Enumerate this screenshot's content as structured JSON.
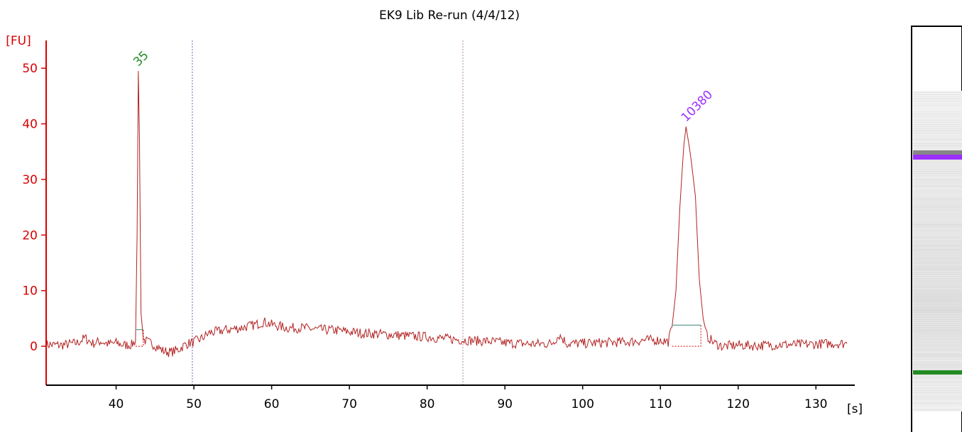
{
  "chart_data": {
    "type": "line",
    "title": "EK9 Lib Re-run (4/4/12)",
    "xlabel": "[s]",
    "ylabel": "[FU]",
    "xlim": [
      31,
      135
    ],
    "ylim": [
      -7,
      55
    ],
    "xticks": [
      40,
      50,
      60,
      70,
      80,
      90,
      100,
      110,
      120,
      130
    ],
    "yticks": [
      0,
      10,
      20,
      30,
      40,
      50
    ],
    "grid": false,
    "series": [
      {
        "color": "#b22222",
        "points": [
          [
            31,
            0.3
          ],
          [
            33,
            0.2
          ],
          [
            35,
            0.6
          ],
          [
            36,
            1.5
          ],
          [
            37,
            0.5
          ],
          [
            38,
            0.9
          ],
          [
            39,
            0.4
          ],
          [
            40,
            0.6
          ],
          [
            41,
            0.2
          ],
          [
            42,
            0.3
          ],
          [
            42.5,
            1.0
          ],
          [
            42.7,
            20
          ],
          [
            42.85,
            49.5
          ],
          [
            43.0,
            38
          ],
          [
            43.2,
            6
          ],
          [
            43.5,
            1.2
          ],
          [
            44,
            0.8
          ],
          [
            45,
            0.2
          ],
          [
            46,
            -0.8
          ],
          [
            47,
            -1.1
          ],
          [
            48,
            -0.6
          ],
          [
            49,
            0.4
          ],
          [
            50,
            0.8
          ],
          [
            51,
            1.4
          ],
          [
            52,
            2.4
          ],
          [
            54,
            2.9
          ],
          [
            56,
            3.3
          ],
          [
            58,
            3.9
          ],
          [
            59,
            4.4
          ],
          [
            60,
            3.9
          ],
          [
            62,
            3.3
          ],
          [
            64,
            3.3
          ],
          [
            66,
            3.0
          ],
          [
            68,
            2.9
          ],
          [
            70,
            2.6
          ],
          [
            72,
            2.3
          ],
          [
            74,
            2.2
          ],
          [
            76,
            2.0
          ],
          [
            78,
            1.8
          ],
          [
            80,
            1.7
          ],
          [
            82,
            1.4
          ],
          [
            84,
            1.2
          ],
          [
            86,
            1.0
          ],
          [
            88,
            0.9
          ],
          [
            90,
            0.6
          ],
          [
            92,
            0.5
          ],
          [
            94,
            0.4
          ],
          [
            96,
            0.5
          ],
          [
            97,
            2.0
          ],
          [
            98,
            0.5
          ],
          [
            100,
            0.5
          ],
          [
            102,
            0.6
          ],
          [
            104,
            0.7
          ],
          [
            106,
            0.8
          ],
          [
            108,
            1.1
          ],
          [
            110,
            1.1
          ],
          [
            111,
            0.8
          ],
          [
            111.5,
            3.5
          ],
          [
            112,
            10
          ],
          [
            112.5,
            25
          ],
          [
            113,
            36
          ],
          [
            113.3,
            39.5
          ],
          [
            113.7,
            36
          ],
          [
            114,
            33
          ],
          [
            114.5,
            27
          ],
          [
            115,
            12
          ],
          [
            115.5,
            5
          ],
          [
            116,
            1.8
          ],
          [
            117,
            0.5
          ],
          [
            118,
            0.0
          ],
          [
            120,
            0.2
          ],
          [
            122,
            0.1
          ],
          [
            124,
            0.2
          ],
          [
            126,
            0.3
          ],
          [
            128,
            0.3
          ],
          [
            130,
            0.4
          ],
          [
            132,
            0.5
          ],
          [
            134,
            0.5
          ]
        ]
      }
    ],
    "peaks": [
      {
        "label": "35",
        "x": 42.85,
        "y": 49.5,
        "color": "#228b22",
        "baseline": 3.0,
        "region": [
          42.5,
          43.5
        ]
      },
      {
        "label": "10380",
        "x": 113.3,
        "y": 39.5,
        "color": "#9b30ff",
        "baseline": 3.8,
        "region": [
          111.5,
          115.2
        ]
      }
    ],
    "markers": [
      {
        "x": 49.8,
        "color": "#6666cc"
      },
      {
        "x": 84.6,
        "color": "#aa88aa"
      }
    ]
  },
  "gel": {
    "upper_band_color": "#9b30ff",
    "lower_band_color": "#228b22"
  }
}
